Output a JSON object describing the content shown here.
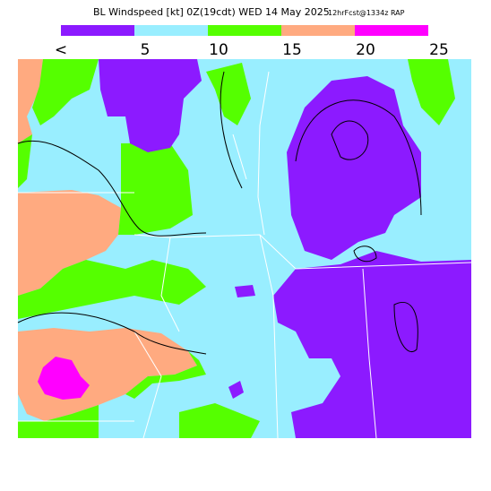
{
  "header": {
    "title": "BL Windspeed [kt] 0Z(19cdt) WED 14 May 2025",
    "subtitle": "12hrFcst@1334z RAP"
  },
  "legend": {
    "colors": [
      "#8c1aff",
      "#99eeff",
      "#55ff00",
      "#ffaa80",
      "#ff00ff"
    ],
    "labels": [
      "<",
      "5",
      "10",
      "15",
      "20",
      "25"
    ]
  }
}
